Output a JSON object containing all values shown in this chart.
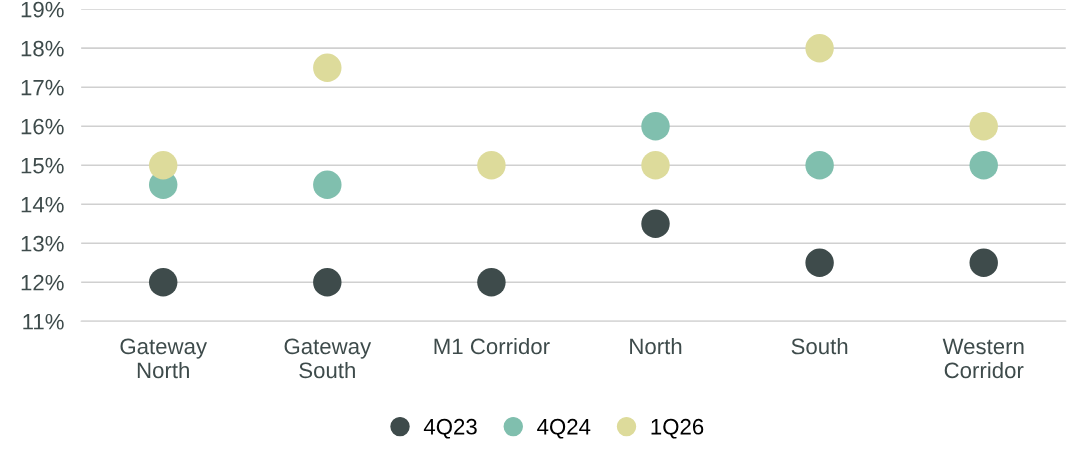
{
  "chart_data": {
    "type": "scatter",
    "categories": [
      "Gateway\nNorth",
      "Gateway\nSouth",
      "M1 Corridor",
      "North",
      "South",
      "Western\nCorridor"
    ],
    "series": [
      {
        "name": "4Q23",
        "color": "#3e4b4b",
        "values": [
          12,
          12,
          12,
          13.5,
          12.5,
          12.5
        ]
      },
      {
        "name": "4Q24",
        "color": "#80bfae",
        "values": [
          14.5,
          14.5,
          null,
          16,
          15,
          15
        ]
      },
      {
        "name": "1Q26",
        "color": "#dddb9b",
        "values": [
          15,
          17.5,
          15,
          15,
          18,
          16
        ]
      }
    ],
    "ylim": [
      11,
      19
    ],
    "yticks": [
      {
        "value": 11,
        "label": "11%"
      },
      {
        "value": 12,
        "label": "12%"
      },
      {
        "value": 13,
        "label": "13%"
      },
      {
        "value": 14,
        "label": "14%"
      },
      {
        "value": 15,
        "label": "15%"
      },
      {
        "value": 16,
        "label": "16%"
      },
      {
        "value": 17,
        "label": "17%"
      },
      {
        "value": 18,
        "label": "18%"
      },
      {
        "value": 19,
        "label": "19%"
      }
    ],
    "grid": "y",
    "legend": "bottom",
    "marker": "circle"
  }
}
